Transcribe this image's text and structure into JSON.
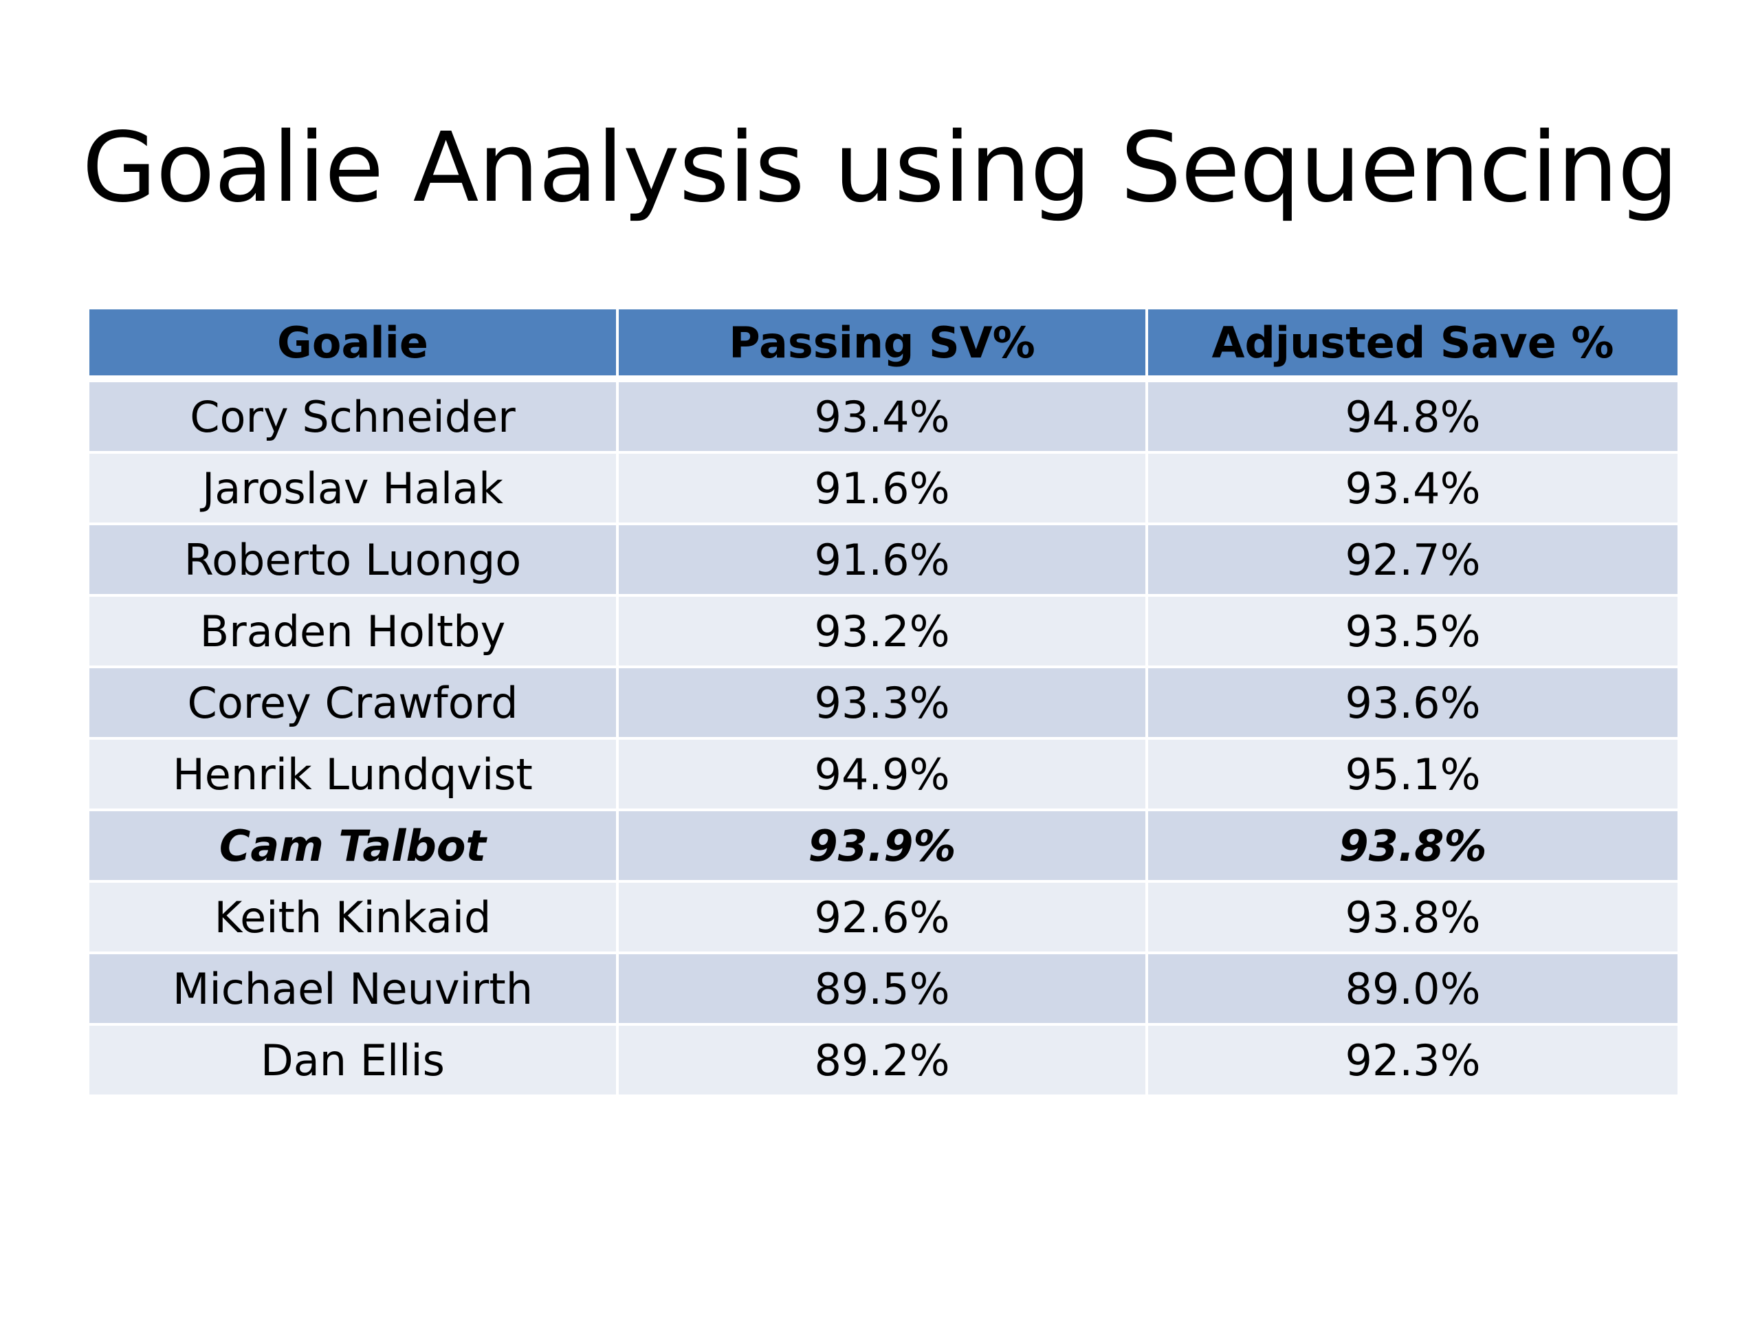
{
  "slide": {
    "title": "Goalie Analysis using Sequencing"
  },
  "table": {
    "headers": [
      "Goalie",
      "Passing SV%",
      "Adjusted Save %"
    ],
    "rows": [
      {
        "goalie": "Cory Schneider",
        "passing_sv": "93.4%",
        "adjusted_sv": "94.8%",
        "highlight": false
      },
      {
        "goalie": "Jaroslav Halak",
        "passing_sv": "91.6%",
        "adjusted_sv": "93.4%",
        "highlight": false
      },
      {
        "goalie": "Roberto Luongo",
        "passing_sv": "91.6%",
        "adjusted_sv": "92.7%",
        "highlight": false
      },
      {
        "goalie": "Braden Holtby",
        "passing_sv": "93.2%",
        "adjusted_sv": "93.5%",
        "highlight": false
      },
      {
        "goalie": "Corey Crawford",
        "passing_sv": "93.3%",
        "adjusted_sv": "93.6%",
        "highlight": false
      },
      {
        "goalie": "Henrik Lundqvist",
        "passing_sv": "94.9%",
        "adjusted_sv": "95.1%",
        "highlight": false
      },
      {
        "goalie": "Cam Talbot",
        "passing_sv": "93.9%",
        "adjusted_sv": "93.8%",
        "highlight": true
      },
      {
        "goalie": "Keith Kinkaid",
        "passing_sv": "92.6%",
        "adjusted_sv": "93.8%",
        "highlight": false
      },
      {
        "goalie": "Michael Neuvirth",
        "passing_sv": "89.5%",
        "adjusted_sv": "89.0%",
        "highlight": false
      },
      {
        "goalie": "Dan Ellis",
        "passing_sv": "89.2%",
        "adjusted_sv": "92.3%",
        "highlight": false
      }
    ]
  },
  "colors": {
    "header_fill": "#4f81bd",
    "row_band_dark": "#d0d8e8",
    "row_band_light": "#e9edf4"
  }
}
